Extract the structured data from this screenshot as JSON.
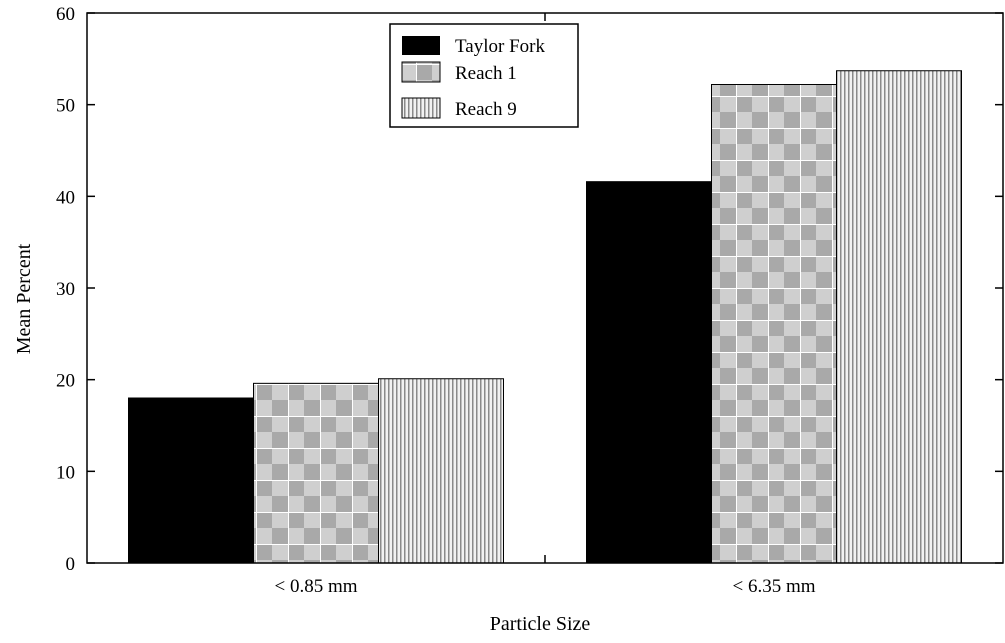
{
  "chart_data": {
    "type": "bar",
    "categories": [
      "< 0.85 mm",
      "< 6.35 mm"
    ],
    "series": [
      {
        "name": "Taylor Fork",
        "values": [
          18.0,
          41.6
        ],
        "pattern": "solid",
        "color": "#000000"
      },
      {
        "name": "Reach 1",
        "values": [
          19.6,
          52.2
        ],
        "pattern": "checker",
        "color": "#c8c8c8"
      },
      {
        "name": "Reach 9",
        "values": [
          20.1,
          53.7
        ],
        "pattern": "vertical-stripes",
        "color": "#e0e0e0"
      }
    ],
    "xlabel": "Particle Size",
    "ylabel": "Mean Percent",
    "ylim": [
      0,
      60
    ],
    "yticks": [
      0,
      10,
      20,
      30,
      40,
      50,
      60
    ],
    "grid": false,
    "legend_position": "top-center"
  }
}
